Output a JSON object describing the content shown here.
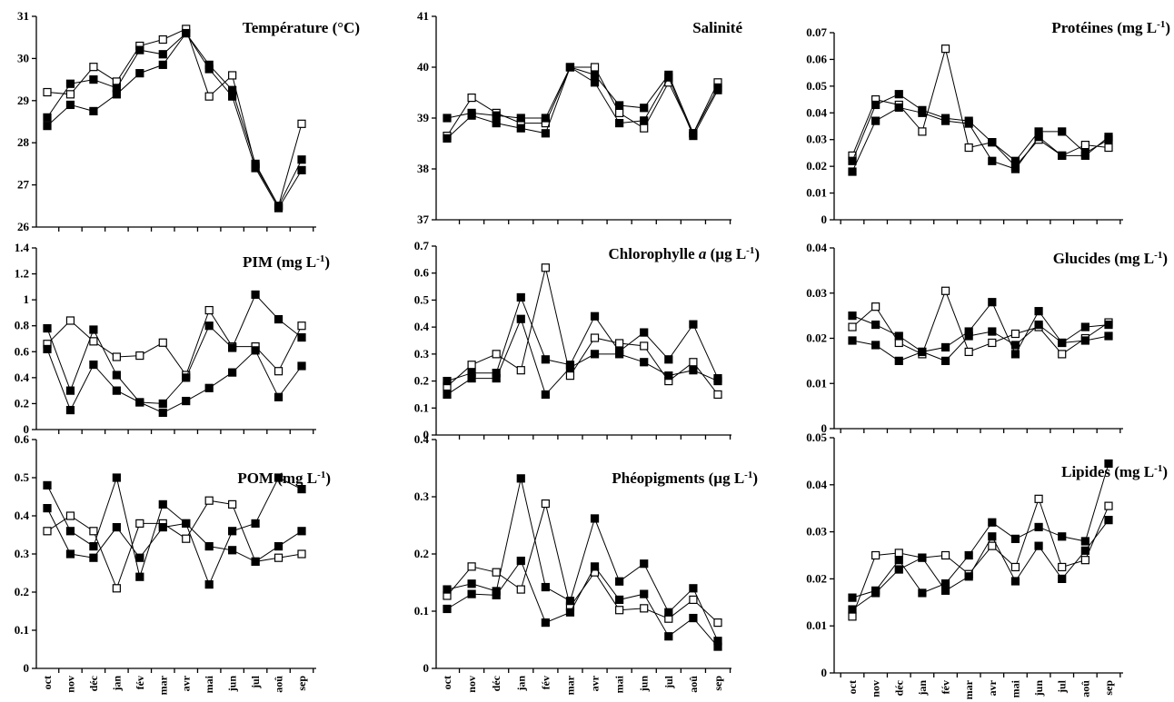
{
  "chart_data": [
    {
      "id": "temperature",
      "type": "line",
      "title": "Température (°C)",
      "ylim": [
        26,
        31
      ],
      "yticks": [
        "26",
        "27",
        "28",
        "29",
        "30",
        "31"
      ],
      "categories": [
        "oct",
        "nov",
        "déc",
        "jan",
        "fév",
        "mar",
        "avr",
        "mai",
        "jun",
        "jul",
        "aoû",
        "sep"
      ],
      "series": [
        {
          "marker": "open",
          "values": [
            29.2,
            29.15,
            29.8,
            29.45,
            30.3,
            30.45,
            30.7,
            29.1,
            29.6,
            27.45,
            26.5,
            28.45
          ]
        },
        {
          "marker": "filled",
          "values": [
            28.6,
            29.4,
            29.5,
            29.3,
            30.2,
            30.1,
            30.6,
            29.85,
            29.25,
            27.5,
            26.5,
            27.6
          ]
        },
        {
          "marker": "filled",
          "values": [
            28.4,
            28.9,
            28.75,
            29.15,
            29.65,
            29.85,
            30.6,
            29.75,
            29.1,
            27.4,
            26.45,
            27.35
          ]
        }
      ]
    },
    {
      "id": "salinite",
      "type": "line",
      "title": "Salinité",
      "ylim": [
        37,
        41
      ],
      "yticks": [
        "37",
        "38",
        "39",
        "40",
        "41"
      ],
      "categories": [
        "oct",
        "nov",
        "déc",
        "jan",
        "fév",
        "mar",
        "avr",
        "mai",
        "jun",
        "jul",
        "aoû",
        "sep"
      ],
      "series": [
        {
          "marker": "open",
          "values": [
            38.65,
            39.4,
            39.1,
            38.9,
            38.9,
            40.0,
            40.0,
            39.1,
            38.8,
            39.7,
            38.7,
            39.7
          ]
        },
        {
          "marker": "filled",
          "values": [
            39.0,
            39.1,
            39.05,
            39.0,
            39.0,
            40.0,
            39.85,
            39.25,
            39.2,
            39.85,
            38.7,
            39.6
          ]
        },
        {
          "marker": "filled",
          "values": [
            38.6,
            39.05,
            38.9,
            38.8,
            38.7,
            40.0,
            39.7,
            38.9,
            38.95,
            39.8,
            38.65,
            39.55
          ]
        }
      ]
    },
    {
      "id": "proteines",
      "type": "line",
      "title": "Protéines (mg L",
      "title_sup": "-1",
      "title_end": ")",
      "ylim": [
        0,
        0.07
      ],
      "yticks": [
        "0",
        "0.01",
        "0.02",
        "0.03",
        "0.04",
        "0.05",
        "0.06",
        "0.07"
      ],
      "categories": [
        "oct",
        "nov",
        "déc",
        "jan",
        "fév",
        "mar",
        "avr",
        "mai",
        "jun",
        "jul",
        "aoû",
        "sep"
      ],
      "series": [
        {
          "marker": "open",
          "values": [
            0.024,
            0.045,
            0.043,
            0.033,
            0.064,
            0.027,
            0.029,
            0.02,
            0.03,
            0.024,
            0.028,
            0.027
          ]
        },
        {
          "marker": "filled",
          "values": [
            0.022,
            0.043,
            0.047,
            0.041,
            0.038,
            0.037,
            0.029,
            0.022,
            0.033,
            0.033,
            0.025,
            0.03
          ]
        },
        {
          "marker": "filled",
          "values": [
            0.018,
            0.037,
            0.042,
            0.04,
            0.037,
            0.036,
            0.022,
            0.019,
            0.031,
            0.024,
            0.024,
            0.031
          ]
        }
      ]
    },
    {
      "id": "pim",
      "type": "line",
      "title": "PIM (mg L",
      "title_sup": "-1",
      "title_end": ")",
      "ylim": [
        0,
        1.4
      ],
      "yticks": [
        "0",
        "0.2",
        "0.4",
        "0.6",
        "0.8",
        "1",
        "1.2",
        "1.4"
      ],
      "categories": [
        "oct",
        "nov",
        "déc",
        "jan",
        "fév",
        "mar",
        "avr",
        "mai",
        "jun",
        "jul",
        "aoû",
        "sep"
      ],
      "series": [
        {
          "marker": "open",
          "values": [
            0.66,
            0.84,
            0.68,
            0.56,
            0.57,
            0.67,
            0.42,
            0.92,
            0.64,
            0.64,
            0.45,
            0.8
          ]
        },
        {
          "marker": "filled",
          "values": [
            0.78,
            0.3,
            0.77,
            0.42,
            0.21,
            0.2,
            0.4,
            0.8,
            0.63,
            1.04,
            0.85,
            0.71
          ]
        },
        {
          "marker": "filled",
          "values": [
            0.62,
            0.15,
            0.5,
            0.3,
            0.21,
            0.13,
            0.22,
            0.32,
            0.44,
            0.61,
            0.25,
            0.49
          ]
        }
      ]
    },
    {
      "id": "chlorophylle",
      "type": "line",
      "title": "Chlorophylle ",
      "title_italic": "a",
      "title_rest": "  (µg L",
      "title_sup": "-1",
      "title_end": ")",
      "ylim": [
        0,
        0.7
      ],
      "yticks": [
        "0",
        "0.1",
        "0.2",
        "0.3",
        "0.4",
        "0.5",
        "0.6",
        "0.7"
      ],
      "categories": [
        "oct",
        "nov",
        "déc",
        "jan",
        "fév",
        "mar",
        "avr",
        "mai",
        "jun",
        "jul",
        "aoû",
        "sep"
      ],
      "series": [
        {
          "marker": "open",
          "values": [
            0.18,
            0.26,
            0.3,
            0.24,
            0.62,
            0.22,
            0.36,
            0.34,
            0.33,
            0.2,
            0.27,
            0.15
          ]
        },
        {
          "marker": "filled",
          "values": [
            0.2,
            0.23,
            0.23,
            0.51,
            0.28,
            0.26,
            0.44,
            0.31,
            0.38,
            0.28,
            0.41,
            0.21
          ]
        },
        {
          "marker": "filled",
          "values": [
            0.15,
            0.21,
            0.21,
            0.43,
            0.15,
            0.25,
            0.3,
            0.3,
            0.27,
            0.22,
            0.24,
            0.2
          ]
        }
      ]
    },
    {
      "id": "glucides",
      "type": "line",
      "title": "Glucides (mg L",
      "title_sup": "-1",
      "title_end": ")",
      "ylim": [
        0,
        0.04
      ],
      "yticks": [
        "0",
        "0.01",
        "0.02",
        "0.03",
        "0.04"
      ],
      "categories": [
        "oct",
        "nov",
        "déc",
        "jan",
        "fév",
        "mar",
        "avr",
        "mai",
        "jun",
        "jul",
        "aoû",
        "sep"
      ],
      "series": [
        {
          "marker": "open",
          "values": [
            0.0225,
            0.027,
            0.019,
            0.0165,
            0.0305,
            0.017,
            0.019,
            0.021,
            0.0225,
            0.0165,
            0.02,
            0.0235
          ]
        },
        {
          "marker": "filled",
          "values": [
            0.025,
            0.023,
            0.0205,
            0.017,
            0.018,
            0.0215,
            0.028,
            0.0165,
            0.026,
            0.019,
            0.0225,
            0.023
          ]
        },
        {
          "marker": "filled",
          "values": [
            0.0195,
            0.0185,
            0.015,
            0.017,
            0.015,
            0.0205,
            0.0215,
            0.0185,
            0.023,
            0.019,
            0.0195,
            0.0205
          ]
        }
      ]
    },
    {
      "id": "pom",
      "type": "line",
      "title": "POM (mg L",
      "title_sup": "-1",
      "title_end": ")",
      "ylim": [
        0,
        0.6
      ],
      "yticks": [
        "0",
        "0.1",
        "0.2",
        "0.3",
        "0.4",
        "0.5",
        "0.6"
      ],
      "categories": [
        "oct",
        "nov",
        "déc",
        "jan",
        "fév",
        "mar",
        "avr",
        "mai",
        "jun",
        "jul",
        "aoû",
        "sep"
      ],
      "series": [
        {
          "marker": "open",
          "values": [
            0.36,
            0.4,
            0.36,
            0.21,
            0.38,
            0.38,
            0.34,
            0.44,
            0.43,
            0.28,
            0.29,
            0.3
          ]
        },
        {
          "marker": "filled",
          "values": [
            0.48,
            0.36,
            0.32,
            0.5,
            0.24,
            0.43,
            0.38,
            0.22,
            0.36,
            0.38,
            0.5,
            0.47
          ]
        },
        {
          "marker": "filled",
          "values": [
            0.42,
            0.3,
            0.29,
            0.37,
            0.29,
            0.37,
            0.38,
            0.32,
            0.31,
            0.28,
            0.32,
            0.36
          ]
        }
      ]
    },
    {
      "id": "pheopigments",
      "type": "line",
      "title": "Phéopigments  (µg L",
      "title_sup": "-1",
      "title_end": ")",
      "ylim": [
        0,
        0.4
      ],
      "yticks": [
        "0",
        "0.1",
        "0.2",
        "0.3",
        "0.4"
      ],
      "categories": [
        "oct",
        "nov",
        "déc",
        "jan",
        "fév",
        "mar",
        "avr",
        "mai",
        "jun",
        "jul",
        "aoû",
        "sep"
      ],
      "series": [
        {
          "marker": "open",
          "values": [
            0.127,
            0.178,
            0.168,
            0.138,
            0.288,
            0.108,
            0.168,
            0.102,
            0.105,
            0.087,
            0.12,
            0.08
          ]
        },
        {
          "marker": "filled",
          "values": [
            0.138,
            0.148,
            0.135,
            0.332,
            0.142,
            0.118,
            0.262,
            0.152,
            0.183,
            0.098,
            0.14,
            0.048
          ]
        },
        {
          "marker": "filled",
          "values": [
            0.104,
            0.13,
            0.128,
            0.188,
            0.08,
            0.098,
            0.178,
            0.12,
            0.13,
            0.056,
            0.088,
            0.038
          ]
        }
      ]
    },
    {
      "id": "lipides",
      "type": "line",
      "title": "Lipides (mg L",
      "title_sup": "-1",
      "title_end": ")",
      "ylim": [
        0,
        0.05
      ],
      "yticks": [
        "0",
        "0.01",
        "0.02",
        "0.03",
        "0.04",
        "0.05"
      ],
      "categories": [
        "oct",
        "nov",
        "déc",
        "jan",
        "fév",
        "mar",
        "avr",
        "mai",
        "jun",
        "jul",
        "aoû",
        "sep"
      ],
      "series": [
        {
          "marker": "open",
          "values": [
            0.012,
            0.025,
            0.0255,
            0.0245,
            0.025,
            0.021,
            0.027,
            0.0225,
            0.037,
            0.0225,
            0.024,
            0.0355
          ]
        },
        {
          "marker": "filled",
          "values": [
            0.016,
            0.0175,
            0.024,
            0.017,
            0.019,
            0.025,
            0.032,
            0.0285,
            0.031,
            0.029,
            0.028,
            0.0445
          ]
        },
        {
          "marker": "filled",
          "values": [
            0.0135,
            0.017,
            0.022,
            0.0245,
            0.0175,
            0.0205,
            0.029,
            0.0195,
            0.027,
            0.02,
            0.026,
            0.0325
          ]
        }
      ]
    }
  ]
}
